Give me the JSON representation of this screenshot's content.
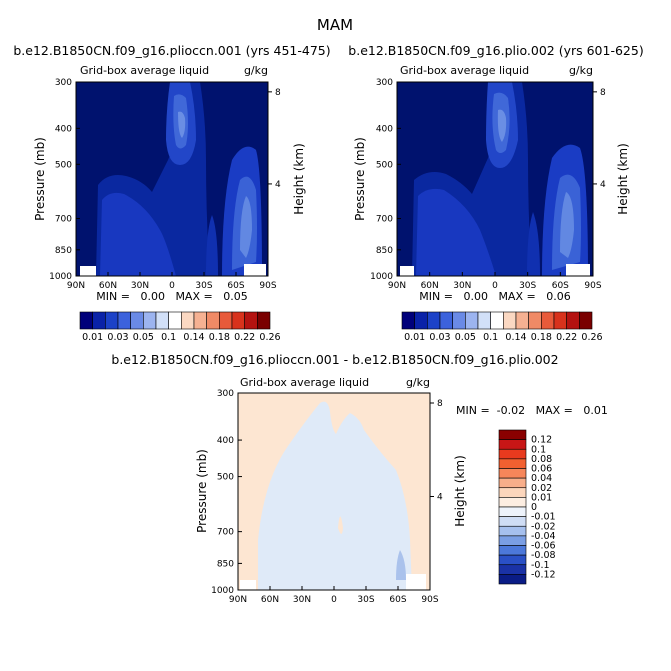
{
  "chart_data": {
    "type": "heatmap",
    "season": "MAM",
    "panels": [
      {
        "title": "b.e12.B1850CN.f09_g16.plioccn.001 (yrs 451-475)",
        "left_label": "Grid-box average liquid",
        "right_label": "g/kg",
        "ylabel": "Pressure (mb)",
        "y2label": "Height (km)",
        "xticks": [
          "90N",
          "60N",
          "30N",
          "0",
          "30S",
          "60S",
          "90S"
        ],
        "yticks": [
          "300",
          "400",
          "500",
          "700",
          "850",
          "1000"
        ],
        "y2ticks": [
          "8",
          "4"
        ],
        "stats": "MIN =   0.00   MAX =   0.05",
        "ylim": [
          1000,
          300
        ]
      },
      {
        "title": "b.e12.B1850CN.f09_g16.plio.002 (yrs 601-625)",
        "left_label": "Grid-box average liquid",
        "right_label": "g/kg",
        "ylabel": "Pressure (mb)",
        "y2label": "Height (km)",
        "xticks": [
          "90N",
          "60N",
          "30N",
          "0",
          "30S",
          "60S",
          "90S"
        ],
        "yticks": [
          "300",
          "400",
          "500",
          "700",
          "850",
          "1000"
        ],
        "y2ticks": [
          "8",
          "4"
        ],
        "stats": "MIN =   0.00   MAX =   0.06",
        "ylim": [
          1000,
          300
        ]
      },
      {
        "title": "b.e12.B1850CN.f09_g16.plioccn.001 - b.e12.B1850CN.f09_g16.plio.002",
        "left_label": "Grid-box average liquid",
        "right_label": "g/kg",
        "ylabel": "Pressure (mb)",
        "y2label": "Height (km)",
        "xticks": [
          "90N",
          "60N",
          "30N",
          "0",
          "30S",
          "60S",
          "90S"
        ],
        "yticks": [
          "300",
          "400",
          "500",
          "700",
          "850",
          "1000"
        ],
        "y2ticks": [
          "8",
          "4"
        ],
        "stats": "MIN =  -0.02   MAX =   0.01",
        "ylim": [
          1000,
          300
        ]
      }
    ],
    "colorbar_top": {
      "labels": [
        "0.01",
        "0.03",
        "0.05",
        "0.1",
        "0.14",
        "0.18",
        "0.22",
        "0.26"
      ],
      "colors": [
        "#00007a",
        "#0a22a8",
        "#1c42c8",
        "#3c62dc",
        "#6a8ae6",
        "#9cb4f0",
        "#d2e0f8",
        "#ffffff",
        "#fbd8c2",
        "#f6b192",
        "#f08a66",
        "#e85a3a",
        "#d8321c",
        "#b41210",
        "#7a0000"
      ]
    },
    "colorbar_diff": {
      "labels": [
        "0.12",
        "0.1",
        "0.08",
        "0.06",
        "0.04",
        "0.02",
        "0.01",
        "0",
        "-0.01",
        "-0.02",
        "-0.04",
        "-0.06",
        "-0.08",
        "-0.1",
        "-0.12"
      ],
      "colors": [
        "#8a0000",
        "#c81616",
        "#e83a1e",
        "#f26030",
        "#f6865a",
        "#f8ae8a",
        "#fcd6bc",
        "#fdeee2",
        "#eef3fb",
        "#cfddf5",
        "#a6c0ee",
        "#7a9ee4",
        "#4c78da",
        "#2a50c6",
        "#1a32a6",
        "#0a1c86"
      ]
    }
  }
}
